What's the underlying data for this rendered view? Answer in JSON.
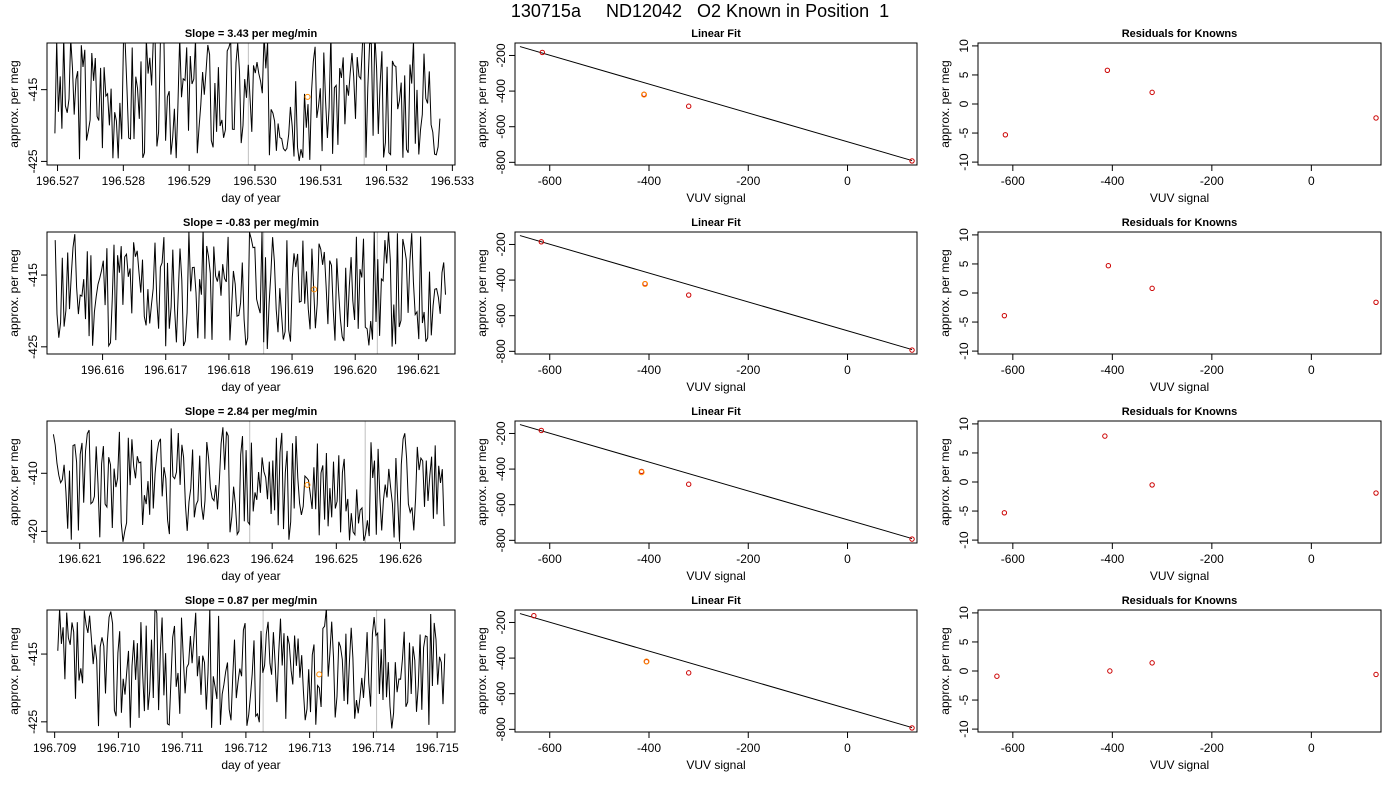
{
  "figure": {
    "title": "130715a     ND12042   O2 Known in Position  1",
    "colors": {
      "axis": "#000000",
      "line": "#000000",
      "point": "#cc0000",
      "highlight": "#ff8c00",
      "vline": "#bfbfbf"
    }
  },
  "chart_data": [
    {
      "type": "line",
      "title": "Slope =  3.43  per meg/min",
      "xlabel": "day of year",
      "ylabel": "approx. per meg",
      "xlim": [
        196.52684,
        196.53304
      ],
      "ylim": [
        -425.5,
        -408.5
      ],
      "xticks": [
        196.527,
        196.528,
        196.529,
        196.53,
        196.531,
        196.532,
        196.533
      ],
      "xtick_labels": [
        "196.527",
        "196.528",
        "196.529",
        "196.530",
        "196.531",
        "196.532",
        "196.533"
      ],
      "yticks": [
        -415,
        -425
      ],
      "ytick_labels": [
        "-415",
        "-425"
      ],
      "x_start": 196.52696,
      "x_end": 196.53281,
      "mean": -416,
      "amplitude": 9,
      "seed": 3,
      "vlines": [
        196.5299,
        196.53166
      ],
      "highlight_point": {
        "x": 196.5308,
        "y": -416
      }
    },
    {
      "type": "scatter",
      "title": "Linear Fit",
      "xlabel": "VUV signal",
      "ylabel": "approx. per meg",
      "xlim": [
        -670,
        140
      ],
      "ylim": [
        -815,
        -130
      ],
      "xticks": [
        -600,
        -400,
        -200,
        0
      ],
      "xtick_labels": [
        "-600",
        "-400",
        "-200",
        "0"
      ],
      "yticks": [
        -200,
        -400,
        -600,
        -800
      ],
      "ytick_labels": [
        "-200",
        "-400",
        "-600",
        "-800"
      ],
      "points": [
        {
          "x": -615,
          "y": -183
        },
        {
          "x": -410,
          "y": -418
        },
        {
          "x": -320,
          "y": -485
        },
        {
          "x": 130,
          "y": -792
        }
      ],
      "highlight_point": {
        "x": -410,
        "y": -420
      },
      "fit_line": {
        "x1": -660,
        "y1": -150,
        "x2": 130,
        "y2": -790
      }
    },
    {
      "type": "scatter",
      "title": "Residuals for Knowns",
      "xlabel": "VUV signal",
      "ylabel": "approx. per meg",
      "xlim": [
        -670,
        140
      ],
      "ylim": [
        -10.5,
        10.5
      ],
      "xticks": [
        -600,
        -400,
        -200,
        0
      ],
      "xtick_labels": [
        "-600",
        "-400",
        "-200",
        "0"
      ],
      "yticks": [
        10,
        5,
        0,
        -5,
        -10
      ],
      "ytick_labels": [
        "10",
        "5",
        "0",
        "-5",
        "-10"
      ],
      "points": [
        {
          "x": -615,
          "y": -5.3
        },
        {
          "x": -410,
          "y": 5.8
        },
        {
          "x": -320,
          "y": 2
        },
        {
          "x": 130,
          "y": -2.4
        }
      ]
    },
    {
      "type": "line",
      "title": "Slope =  -0.83  per meg/min",
      "xlabel": "day of year",
      "ylabel": "approx. per meg",
      "xlim": [
        196.61512,
        196.62158
      ],
      "ylim": [
        -426,
        -409
      ],
      "xticks": [
        196.616,
        196.617,
        196.618,
        196.619,
        196.62,
        196.621
      ],
      "xtick_labels": [
        "196.616",
        "196.617",
        "196.618",
        "196.619",
        "196.620",
        "196.621"
      ],
      "yticks": [
        -415,
        -425
      ],
      "ytick_labels": [
        "-415",
        "-425"
      ],
      "x_start": 196.61525,
      "x_end": 196.62143,
      "mean": -417,
      "amplitude": 8.5,
      "seed": 11,
      "vlines": [
        196.61855,
        196.62035
      ],
      "highlight_point": {
        "x": 196.61935,
        "y": -417
      }
    },
    {
      "type": "scatter",
      "title": "Linear Fit",
      "xlabel": "VUV signal",
      "ylabel": "approx. per meg",
      "xlim": [
        -670,
        140
      ],
      "ylim": [
        -815,
        -130
      ],
      "xticks": [
        -600,
        -400,
        -200,
        0
      ],
      "xtick_labels": [
        "-600",
        "-400",
        "-200",
        "0"
      ],
      "yticks": [
        -200,
        -400,
        -600,
        -800
      ],
      "ytick_labels": [
        "-200",
        "-400",
        "-600",
        "-800"
      ],
      "points": [
        {
          "x": -617,
          "y": -185
        },
        {
          "x": -408,
          "y": -420
        },
        {
          "x": -320,
          "y": -484
        },
        {
          "x": 130,
          "y": -793
        }
      ],
      "highlight_point": {
        "x": -408,
        "y": -422
      },
      "fit_line": {
        "x1": -660,
        "y1": -150,
        "x2": 130,
        "y2": -790
      }
    },
    {
      "type": "scatter",
      "title": "Residuals for Knowns",
      "xlabel": "VUV signal",
      "ylabel": "approx. per meg",
      "xlim": [
        -670,
        140
      ],
      "ylim": [
        -10.5,
        10.5
      ],
      "xticks": [
        -600,
        -400,
        -200,
        0
      ],
      "xtick_labels": [
        "-600",
        "-400",
        "-200",
        "0"
      ],
      "yticks": [
        10,
        5,
        0,
        -5,
        -10
      ],
      "ytick_labels": [
        "10",
        "5",
        "0",
        "-5",
        "-10"
      ],
      "points": [
        {
          "x": -617,
          "y": -3.9
        },
        {
          "x": -408,
          "y": 4.7
        },
        {
          "x": -320,
          "y": 0.8
        },
        {
          "x": 130,
          "y": -1.6
        }
      ]
    },
    {
      "type": "line",
      "title": "Slope =  2.84  per meg/min",
      "xlabel": "day of year",
      "ylabel": "approx. per meg",
      "xlim": [
        196.62049,
        196.62685
      ],
      "ylim": [
        -422,
        -401
      ],
      "xticks": [
        196.621,
        196.622,
        196.623,
        196.624,
        196.625,
        196.626
      ],
      "xtick_labels": [
        "196.621",
        "196.622",
        "196.623",
        "196.624",
        "196.625",
        "196.626"
      ],
      "yticks": [
        -410,
        -420
      ],
      "ytick_labels": [
        "-410",
        "-420"
      ],
      "x_start": 196.62059,
      "x_end": 196.62668,
      "mean": -412,
      "amplitude": 10,
      "seed": 23,
      "vlines": [
        196.62365,
        196.62545
      ],
      "highlight_point": {
        "x": 196.62455,
        "y": -412
      }
    },
    {
      "type": "scatter",
      "title": "Linear Fit",
      "xlabel": "VUV signal",
      "ylabel": "approx. per meg",
      "xlim": [
        -670,
        140
      ],
      "ylim": [
        -815,
        -130
      ],
      "xticks": [
        -600,
        -400,
        -200,
        0
      ],
      "xtick_labels": [
        "-600",
        "-400",
        "-200",
        "0"
      ],
      "yticks": [
        -200,
        -400,
        -600,
        -800
      ],
      "ytick_labels": [
        "-200",
        "-400",
        "-600",
        "-800"
      ],
      "points": [
        {
          "x": -617,
          "y": -183
        },
        {
          "x": -415,
          "y": -413
        },
        {
          "x": -320,
          "y": -485
        },
        {
          "x": 130,
          "y": -793
        }
      ],
      "highlight_point": {
        "x": -415,
        "y": -418
      },
      "fit_line": {
        "x1": -660,
        "y1": -150,
        "x2": 130,
        "y2": -790
      }
    },
    {
      "type": "scatter",
      "title": "Residuals for Knowns",
      "xlabel": "VUV signal",
      "ylabel": "approx. per meg",
      "xlim": [
        -670,
        140
      ],
      "ylim": [
        -10.5,
        10.5
      ],
      "xticks": [
        -600,
        -400,
        -200,
        0
      ],
      "xtick_labels": [
        "-600",
        "-400",
        "-200",
        "0"
      ],
      "yticks": [
        10,
        5,
        0,
        -5,
        -10
      ],
      "ytick_labels": [
        "10",
        "5",
        "0",
        "-5",
        "-10"
      ],
      "points": [
        {
          "x": -617,
          "y": -5.3
        },
        {
          "x": -415,
          "y": 7.9
        },
        {
          "x": -320,
          "y": -0.5
        },
        {
          "x": 130,
          "y": -1.9
        }
      ]
    },
    {
      "type": "line",
      "title": "Slope =  0.87  per meg/min",
      "xlabel": "day of year",
      "ylabel": "approx. per meg",
      "xlim": [
        196.70888,
        196.71528
      ],
      "ylim": [
        -426.5,
        -408.5
      ],
      "xticks": [
        196.709,
        196.71,
        196.711,
        196.712,
        196.713,
        196.714,
        196.715
      ],
      "xtick_labels": [
        "196.709",
        "196.710",
        "196.711",
        "196.712",
        "196.713",
        "196.714",
        "196.715"
      ],
      "yticks": [
        -415,
        -425
      ],
      "ytick_labels": [
        "-415",
        "-425"
      ],
      "x_start": 196.70905,
      "x_end": 196.71512,
      "mean": -417,
      "amplitude": 9,
      "seed": 37,
      "vlines": [
        196.71227,
        196.71405
      ],
      "highlight_point": {
        "x": 196.71315,
        "y": -418
      }
    },
    {
      "type": "scatter",
      "title": "Linear Fit",
      "xlabel": "VUV signal",
      "ylabel": "approx. per meg",
      "xlim": [
        -670,
        140
      ],
      "ylim": [
        -815,
        -130
      ],
      "xticks": [
        -600,
        -400,
        -200,
        0
      ],
      "xtick_labels": [
        "-600",
        "-400",
        "-200",
        "0"
      ],
      "yticks": [
        -200,
        -400,
        -600,
        -800
      ],
      "ytick_labels": [
        "-200",
        "-400",
        "-600",
        "-800"
      ],
      "points": [
        {
          "x": -632,
          "y": -162
        },
        {
          "x": -405,
          "y": -420
        },
        {
          "x": -320,
          "y": -483
        },
        {
          "x": 130,
          "y": -792
        }
      ],
      "highlight_point": {
        "x": -405,
        "y": -419
      },
      "fit_line": {
        "x1": -660,
        "y1": -150,
        "x2": 130,
        "y2": -790
      }
    },
    {
      "type": "scatter",
      "title": "Residuals for Knowns",
      "xlabel": "VUV signal",
      "ylabel": "approx. per meg",
      "xlim": [
        -670,
        140
      ],
      "ylim": [
        -10.5,
        10.5
      ],
      "xticks": [
        -600,
        -400,
        -200,
        0
      ],
      "xtick_labels": [
        "-600",
        "-400",
        "-200",
        "0"
      ],
      "yticks": [
        10,
        5,
        0,
        -5,
        -10
      ],
      "ytick_labels": [
        "10",
        "5",
        "0",
        "-5",
        "-10"
      ],
      "points": [
        {
          "x": -632,
          "y": -0.9
        },
        {
          "x": -405,
          "y": 0
        },
        {
          "x": -320,
          "y": 1.4
        },
        {
          "x": 130,
          "y": -0.6
        }
      ]
    }
  ]
}
